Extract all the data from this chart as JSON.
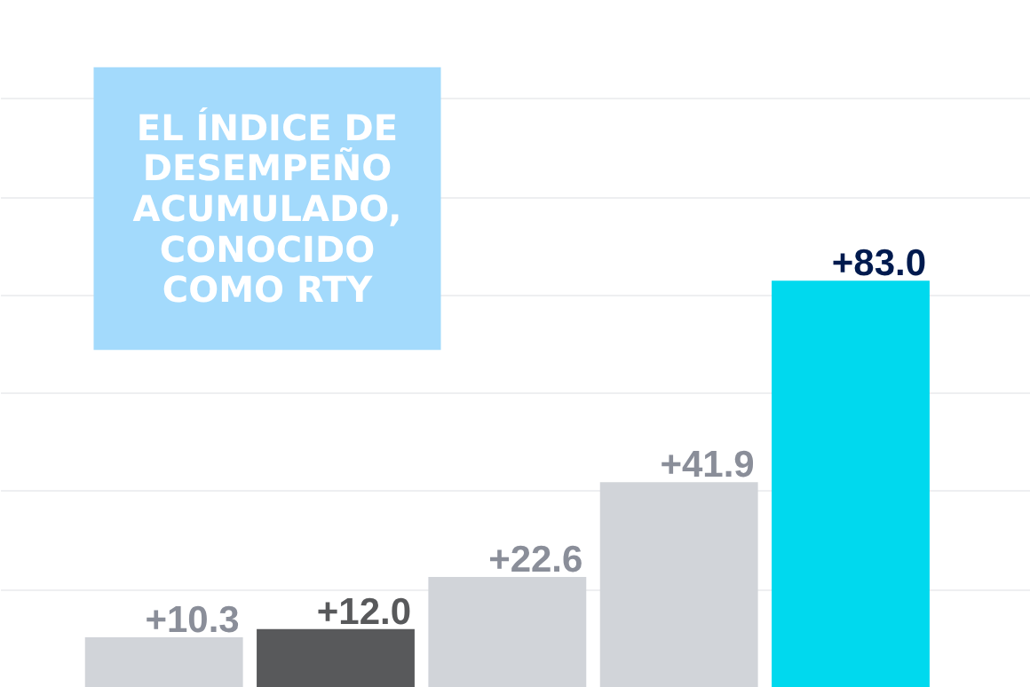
{
  "chart_data": {
    "type": "bar",
    "title": "EL ÍNDICE DE DESEMPEÑO ACUMULADO, CONOCIDO COMO RTY",
    "categories": [
      null,
      null,
      null,
      null,
      null
    ],
    "values": [
      10.3,
      12.0,
      22.6,
      41.9,
      83.0
    ],
    "colors": [
      "#d1d4d9",
      "#58595b",
      "#d1d4d9",
      "#d1d4d9",
      "#00d9ee"
    ],
    "value_labels": [
      "+10.3",
      "+12.0",
      "+22.6",
      "+41.9",
      "+83.0"
    ],
    "ylim": [
      0,
      140
    ],
    "yticks": [
      {
        "value": 0,
        "label": null
      },
      {
        "value": 20,
        "label": null
      },
      {
        "value": 40,
        "label": null
      },
      {
        "value": 60,
        "label": null
      },
      {
        "value": 80,
        "label": null
      },
      {
        "value": 100,
        "label": null
      },
      {
        "value": 120,
        "label": null
      },
      {
        "value": 140,
        "label": null
      }
    ],
    "grid": "y",
    "tick_labels": false
  }
}
